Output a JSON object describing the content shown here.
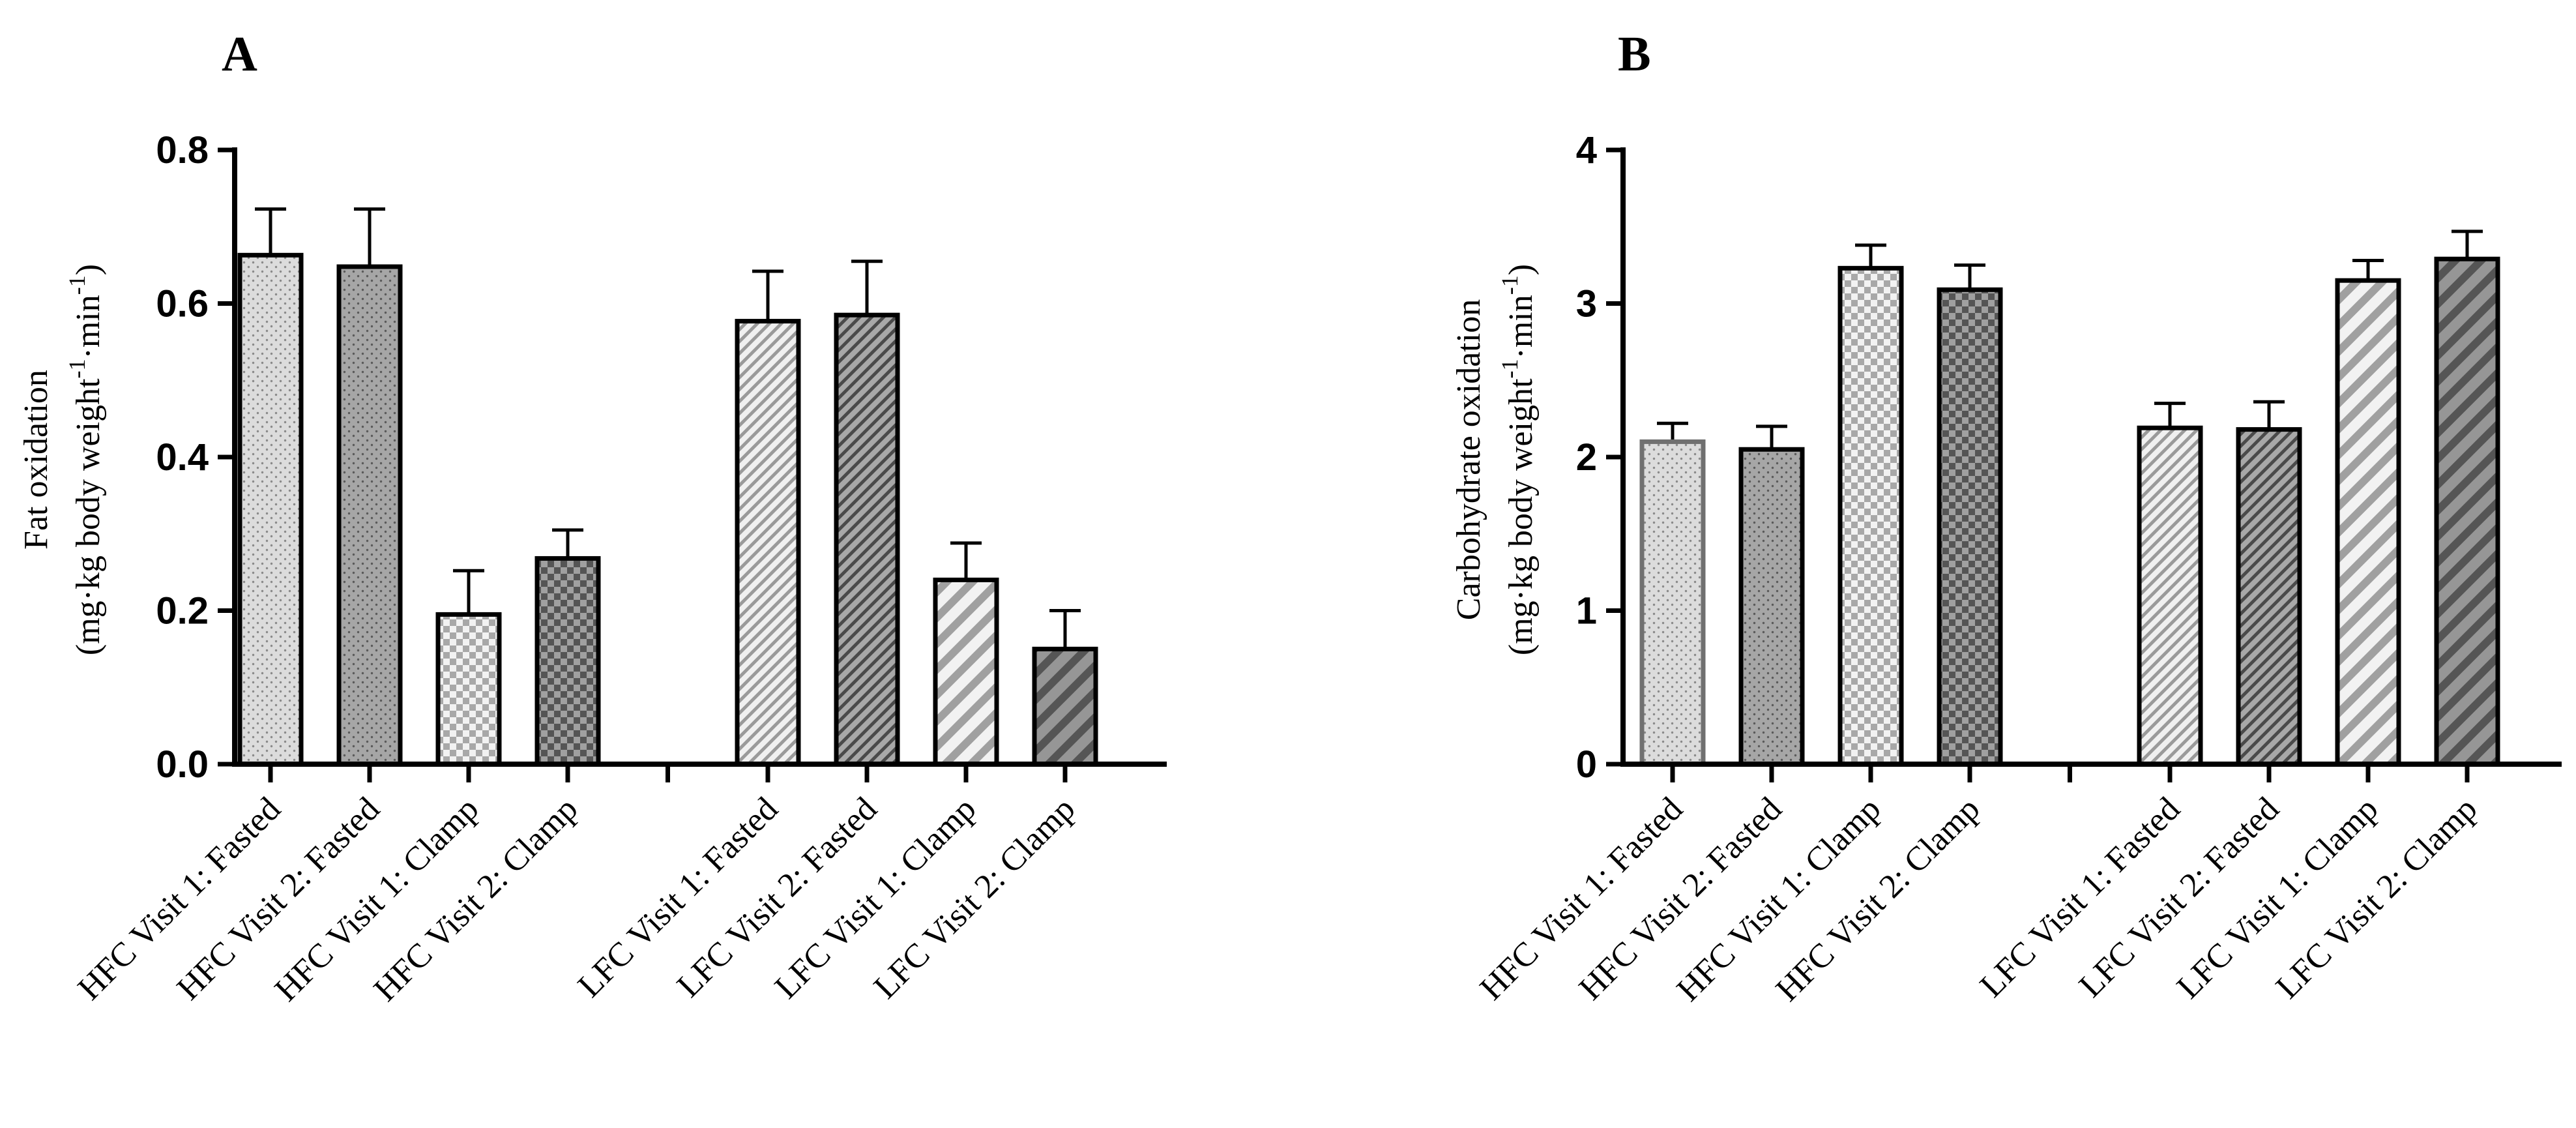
{
  "chart_data": [
    {
      "type": "bar",
      "panel": "A",
      "ylabel_line1": "Fat oxidation",
      "ylabel_line2": "(mg·kg body weight",
      "ylabel_sup1": "-1",
      "ylabel_mid": "·min",
      "ylabel_sup2": "-1",
      "ylabel_end": ")",
      "ylim": [
        0,
        0.8
      ],
      "yticks": [
        "0.0",
        "0.2",
        "0.4",
        "0.6",
        "0.8"
      ],
      "categories": [
        "HFC Visit 1: Fasted",
        "HFC Visit 2: Fasted",
        "HFC Visit 1: Clamp",
        "HFC Visit 2: Clamp",
        "LFC Visit 1: Fasted",
        "LFC Visit 2: Fasted",
        "LFC Visit 1: Clamp",
        "LFC Visit 2: Clamp"
      ],
      "values": [
        0.663,
        0.648,
        0.195,
        0.268,
        0.577,
        0.585,
        0.24,
        0.15
      ],
      "errors": [
        0.06,
        0.075,
        0.057,
        0.037,
        0.065,
        0.07,
        0.048,
        0.05
      ]
    },
    {
      "type": "bar",
      "panel": "B",
      "ylabel_line1": "Carbohydrate oxidation",
      "ylabel_line2": "(mg·kg body weight",
      "ylabel_sup1": "-1",
      "ylabel_mid": "·min",
      "ylabel_sup2": "-1",
      "ylabel_end": ")",
      "ylim": [
        0,
        4
      ],
      "yticks": [
        "0",
        "1",
        "2",
        "3",
        "4"
      ],
      "categories": [
        "HFC Visit 1: Fasted",
        "HFC Visit 2: Fasted",
        "HFC Visit 1: Clamp",
        "HFC Visit 2: Clamp",
        "LFC Visit 1: Fasted",
        "LFC Visit 2: Fasted",
        "LFC Visit 1: Clamp",
        "LFC Visit 2: Clamp"
      ],
      "values": [
        2.1,
        2.05,
        3.23,
        3.09,
        2.19,
        2.18,
        3.15,
        3.29
      ],
      "errors": [
        0.12,
        0.15,
        0.15,
        0.16,
        0.16,
        0.18,
        0.13,
        0.18
      ]
    }
  ]
}
